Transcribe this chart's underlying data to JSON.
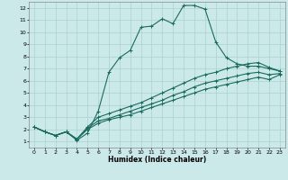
{
  "xlabel": "Humidex (Indice chaleur)",
  "bg_color": "#cce9e9",
  "grid_color": "#aad0d0",
  "line_color": "#1a6b5e",
  "xlim": [
    -0.5,
    23.5
  ],
  "ylim": [
    0.5,
    12.5
  ],
  "xticks": [
    0,
    1,
    2,
    3,
    4,
    5,
    6,
    7,
    8,
    9,
    10,
    11,
    12,
    13,
    14,
    15,
    16,
    17,
    18,
    19,
    20,
    21,
    22,
    23
  ],
  "yticks": [
    1,
    2,
    3,
    4,
    5,
    6,
    7,
    8,
    9,
    10,
    11,
    12
  ],
  "line1_x": [
    0,
    1,
    2,
    3,
    4,
    5,
    6,
    7,
    8,
    9,
    10,
    11,
    12,
    13,
    14,
    15,
    16,
    17,
    18,
    19,
    20,
    21,
    22,
    23
  ],
  "line1_y": [
    2.2,
    1.8,
    1.5,
    1.8,
    1.1,
    1.7,
    3.5,
    6.7,
    7.9,
    8.5,
    10.4,
    10.5,
    11.1,
    10.7,
    12.2,
    12.2,
    11.9,
    9.2,
    7.9,
    7.4,
    7.2,
    7.2,
    7.0,
    6.8
  ],
  "line2_x": [
    0,
    1,
    2,
    3,
    4,
    5,
    6,
    7,
    8,
    9,
    10,
    11,
    12,
    13,
    14,
    15,
    16,
    17,
    18,
    19,
    20,
    21,
    22,
    23
  ],
  "line2_y": [
    2.2,
    1.8,
    1.5,
    1.8,
    1.2,
    2.2,
    3.0,
    3.3,
    3.6,
    3.9,
    4.2,
    4.6,
    5.0,
    5.4,
    5.8,
    6.2,
    6.5,
    6.7,
    7.0,
    7.2,
    7.4,
    7.5,
    7.1,
    6.8
  ],
  "line3_x": [
    0,
    1,
    2,
    3,
    4,
    5,
    6,
    7,
    8,
    9,
    10,
    11,
    12,
    13,
    14,
    15,
    16,
    17,
    18,
    19,
    20,
    21,
    22,
    23
  ],
  "line3_y": [
    2.2,
    1.8,
    1.5,
    1.8,
    1.2,
    2.1,
    2.7,
    2.9,
    3.2,
    3.5,
    3.8,
    4.1,
    4.4,
    4.8,
    5.1,
    5.5,
    5.8,
    6.0,
    6.2,
    6.4,
    6.6,
    6.7,
    6.5,
    6.6
  ],
  "line4_x": [
    0,
    1,
    2,
    3,
    4,
    5,
    6,
    7,
    8,
    9,
    10,
    11,
    12,
    13,
    14,
    15,
    16,
    17,
    18,
    19,
    20,
    21,
    22,
    23
  ],
  "line4_y": [
    2.2,
    1.8,
    1.5,
    1.8,
    1.2,
    2.0,
    2.5,
    2.8,
    3.0,
    3.2,
    3.5,
    3.8,
    4.1,
    4.4,
    4.7,
    5.0,
    5.3,
    5.5,
    5.7,
    5.9,
    6.1,
    6.3,
    6.1,
    6.5
  ]
}
